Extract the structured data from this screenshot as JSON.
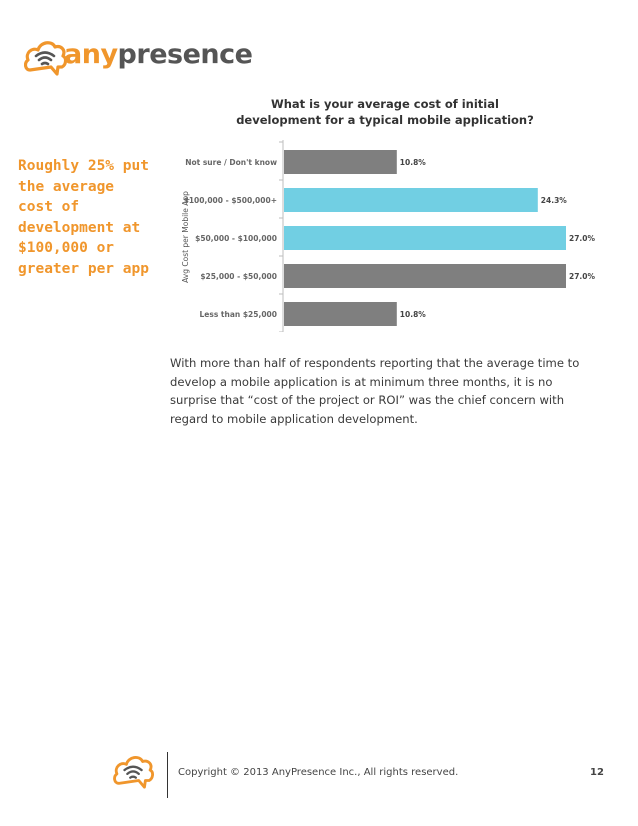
{
  "brand": {
    "name_part1": "any",
    "name_part2": "presence",
    "accent_color": "#f0962c",
    "text_color": "#555555"
  },
  "callout": {
    "text": "Roughly 25% put the average cost of development at $100,000 or greater per app"
  },
  "chart_data": {
    "type": "bar",
    "orientation": "horizontal",
    "title": "What is your average cost of initial development for a typical mobile application?",
    "ylabel": "Avg Cost per Mobile App",
    "categories": [
      "Not sure / Don't know",
      "$100,000 - $500,000+",
      "$50,000 - $100,000",
      "$25,000 - $50,000",
      "Less than $25,000"
    ],
    "values": [
      10.8,
      24.3,
      27.0,
      27.0,
      10.8
    ],
    "data_labels": [
      "10.8%",
      "24.3%",
      "27.0%",
      "27.0%",
      "10.8%"
    ],
    "colors": [
      "#7f7f7f",
      "#71cfe3",
      "#71cfe3",
      "#7f7f7f",
      "#7f7f7f"
    ],
    "xlim": [
      0,
      27
    ],
    "grid": false,
    "legend": "none"
  },
  "body": {
    "paragraph": "With more than half of respondents reporting that the average time to develop a mobile application is at minimum three months, it is no surprise that “cost of the project or ROI” was the chief concern with regard to mobile application development."
  },
  "footer": {
    "copyright": "Copyright © 2013 AnyPresence Inc., All rights reserved.",
    "page_number": "12"
  }
}
